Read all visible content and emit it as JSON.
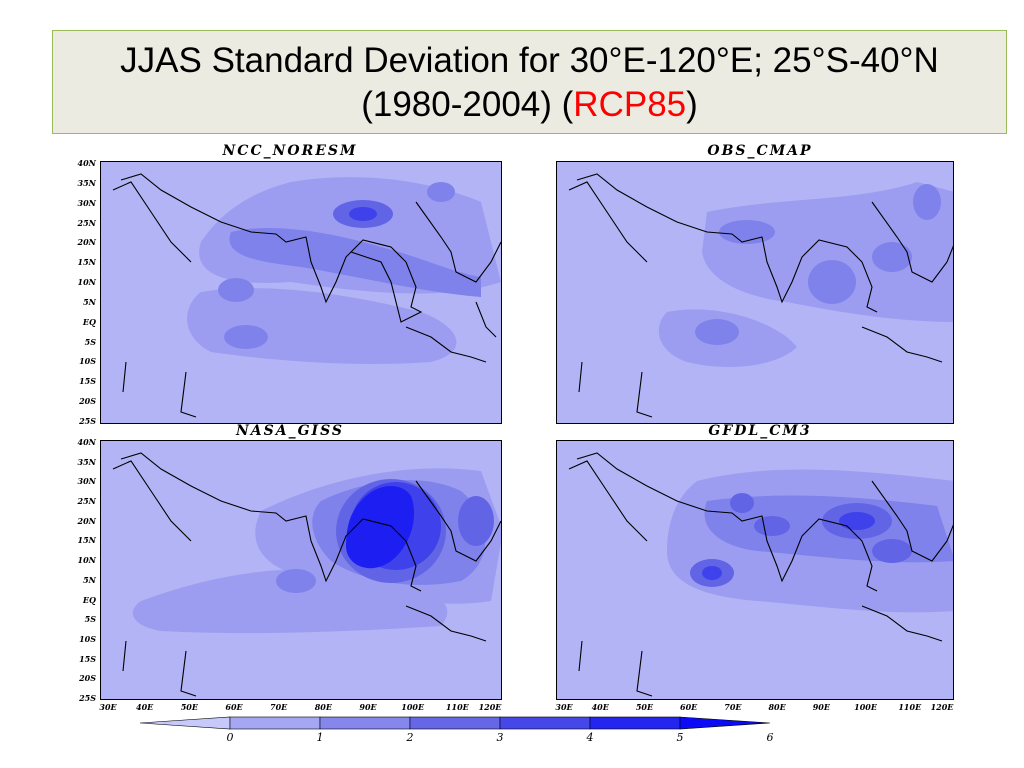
{
  "title": {
    "line1": "JJAS Standard Deviation for 30°E-120°E; 25°S-40°N",
    "line2_prefix": "(1980-2004) (",
    "line2_accent": "RCP85",
    "line2_suffix": ")",
    "accent_color": "#ff0000"
  },
  "panels": [
    {
      "name": "NCC_NORESM"
    },
    {
      "name": "OBS_CMAP"
    },
    {
      "name": "NASA_GISS"
    },
    {
      "name": "GFDL_CM3"
    }
  ],
  "lat_labels": [
    "40N",
    "35N",
    "30N",
    "25N",
    "20N",
    "15N",
    "10N",
    "5N",
    "EQ",
    "5S",
    "10S",
    "15S",
    "20S",
    "25S"
  ],
  "lon_labels_left": [
    "30E",
    "40E",
    "50E",
    "60E",
    "70E",
    "80E",
    "90E",
    "100E",
    "110E",
    "120E"
  ],
  "lon_labels_right": [
    "30E",
    "40E",
    "50E",
    "60E",
    "70E",
    "80E",
    "90E",
    "100E",
    "110E",
    "120E"
  ],
  "colorbar": {
    "ticks": [
      "0",
      "1",
      "2",
      "3",
      "4",
      "5",
      "6"
    ],
    "colors": [
      "#c8c9fb",
      "#a6a7f3",
      "#8587ed",
      "#6567e6",
      "#4547e8",
      "#2426ef",
      "#0b0bf5"
    ]
  },
  "colors": {
    "level0": "#b3b4f5",
    "level1": "#9c9df0",
    "level2": "#8082eb",
    "level3": "#6264e6",
    "level4": "#3f41ea",
    "level5": "#1d1ff2",
    "coast": "#000000"
  }
}
